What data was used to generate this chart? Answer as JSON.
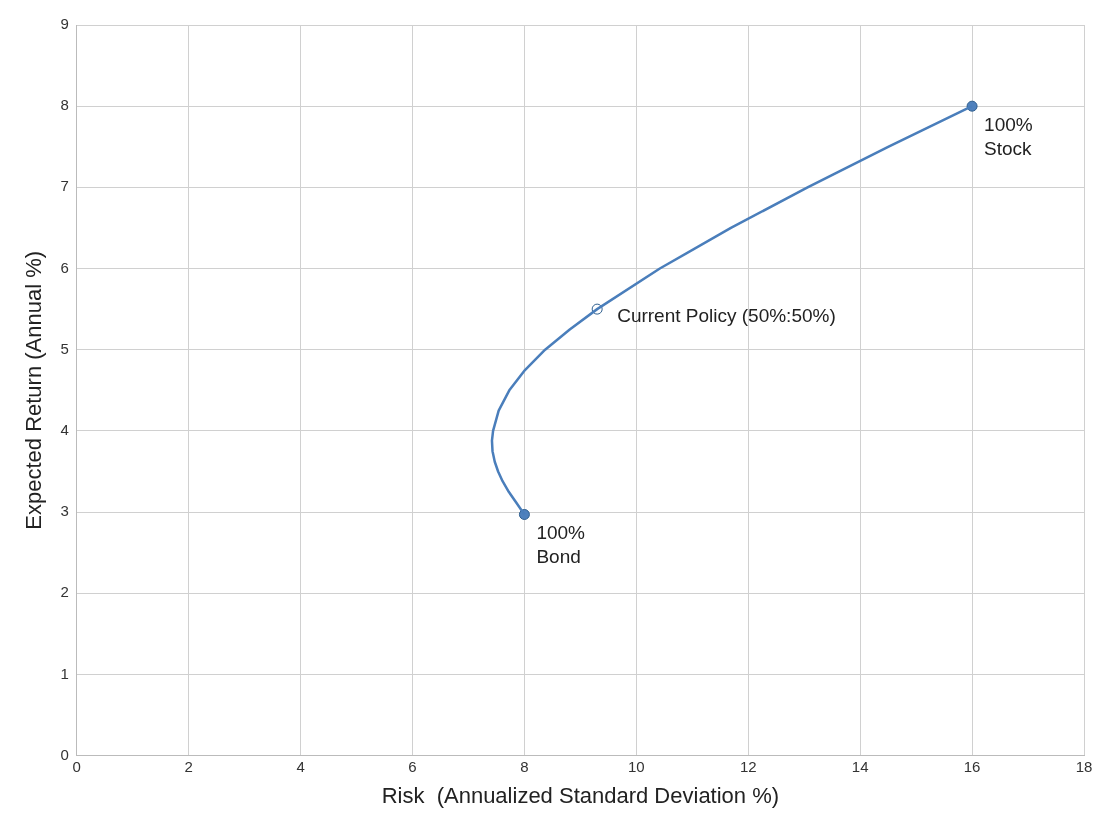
{
  "chart_data": {
    "type": "scatter",
    "xlabel": "Risk  (Annualized Standard Deviation %)",
    "ylabel": "Expected Return (Annual %)",
    "xlim": [
      0,
      18
    ],
    "xticks": [
      0,
      2,
      4,
      6,
      8,
      10,
      12,
      14,
      16,
      18
    ],
    "ylim": [
      0,
      9
    ],
    "yticks": [
      0,
      1,
      2,
      3,
      4,
      5,
      6,
      7,
      8,
      9
    ],
    "grid": true,
    "series": [
      {
        "type": "line",
        "marker": "none",
        "color": "#4a7ebb",
        "x": [
          8,
          7.85,
          7.72,
          7.61,
          7.53,
          7.47,
          7.43,
          7.42,
          7.44,
          7.54,
          7.73,
          8.01,
          8.37,
          8.81,
          9.3,
          10.42,
          11.69,
          13.06,
          14.5,
          16
        ],
        "values": [
          2.97,
          3.12,
          3.25,
          3.38,
          3.5,
          3.62,
          3.75,
          3.88,
          4,
          4.25,
          4.5,
          4.75,
          5,
          5.25,
          5.5,
          6,
          6.5,
          7,
          7.5,
          8
        ]
      },
      {
        "marker": "circle",
        "colors": [
          "#4f81bd",
          "#ffffff",
          "#4f81bd"
        ],
        "x": [
          8,
          9.3,
          16
        ],
        "values": [
          2.97,
          5.5,
          8
        ]
      }
    ],
    "annotations": [
      {
        "text": "100%\nBond",
        "x": 8,
        "y": 2.97
      },
      {
        "text": "Current Policy (50%:50%)",
        "x": 9.3,
        "y": 5.5
      },
      {
        "text": "100%\nStock",
        "x": 16,
        "y": 8
      }
    ]
  }
}
